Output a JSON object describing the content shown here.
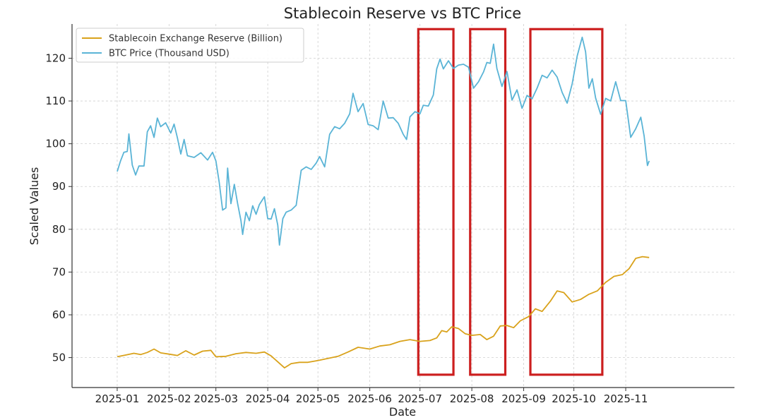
{
  "chart_data": {
    "type": "line",
    "title": "Stablecoin Reserve vs BTC Price",
    "xlabel": "Date",
    "ylabel": "Scaled Values",
    "x_ticks": [
      "2025-01",
      "2025-02",
      "2025-03",
      "2025-04",
      "2025-05",
      "2025-06",
      "2025-07",
      "2025-08",
      "2025-09",
      "2025-10",
      "2025-11"
    ],
    "xlim": [
      "2024-12-05",
      "2026-01-05"
    ],
    "ylim": [
      43,
      128
    ],
    "y_ticks": [
      50,
      60,
      70,
      80,
      90,
      100,
      110,
      120
    ],
    "grid": true,
    "legend_position": "top-left",
    "series": [
      {
        "name": "Stablecoin Exchange Reserve (Billion)",
        "color": "#d9a21b",
        "points": [
          [
            "2025-01-01",
            50.2
          ],
          [
            "2025-01-06",
            50.6
          ],
          [
            "2025-01-11",
            51.0
          ],
          [
            "2025-01-15",
            50.7
          ],
          [
            "2025-01-19",
            51.2
          ],
          [
            "2025-01-23",
            52.0
          ],
          [
            "2025-01-27",
            51.1
          ],
          [
            "2025-02-01",
            50.8
          ],
          [
            "2025-02-06",
            50.5
          ],
          [
            "2025-02-11",
            51.6
          ],
          [
            "2025-02-16",
            50.6
          ],
          [
            "2025-02-21",
            51.5
          ],
          [
            "2025-02-26",
            51.7
          ],
          [
            "2025-03-01",
            50.2
          ],
          [
            "2025-03-07",
            50.3
          ],
          [
            "2025-03-13",
            50.9
          ],
          [
            "2025-03-19",
            51.2
          ],
          [
            "2025-03-25",
            51.0
          ],
          [
            "2025-03-30",
            51.3
          ],
          [
            "2025-04-03",
            50.4
          ],
          [
            "2025-04-07",
            49.0
          ],
          [
            "2025-04-11",
            47.6
          ],
          [
            "2025-04-15",
            48.6
          ],
          [
            "2025-04-20",
            48.9
          ],
          [
            "2025-04-25",
            48.9
          ],
          [
            "2025-05-01",
            49.3
          ],
          [
            "2025-05-07",
            49.8
          ],
          [
            "2025-05-13",
            50.3
          ],
          [
            "2025-05-19",
            51.3
          ],
          [
            "2025-05-25",
            52.4
          ],
          [
            "2025-06-01",
            52.0
          ],
          [
            "2025-06-07",
            52.7
          ],
          [
            "2025-06-13",
            53.0
          ],
          [
            "2025-06-19",
            53.8
          ],
          [
            "2025-06-25",
            54.2
          ],
          [
            "2025-07-01",
            53.8
          ],
          [
            "2025-07-07",
            54.0
          ],
          [
            "2025-07-11",
            54.6
          ],
          [
            "2025-07-14",
            56.3
          ],
          [
            "2025-07-17",
            56.0
          ],
          [
            "2025-07-20",
            57.2
          ],
          [
            "2025-07-24",
            56.8
          ],
          [
            "2025-07-28",
            55.6
          ],
          [
            "2025-08-01",
            55.2
          ],
          [
            "2025-08-06",
            55.4
          ],
          [
            "2025-08-10",
            54.2
          ],
          [
            "2025-08-14",
            55.0
          ],
          [
            "2025-08-18",
            57.4
          ],
          [
            "2025-08-22",
            57.5
          ],
          [
            "2025-08-26",
            57.0
          ],
          [
            "2025-08-30",
            58.6
          ],
          [
            "2025-09-04",
            59.6
          ],
          [
            "2025-09-08",
            61.4
          ],
          [
            "2025-09-12",
            60.8
          ],
          [
            "2025-09-17",
            63.2
          ],
          [
            "2025-09-21",
            65.6
          ],
          [
            "2025-09-25",
            65.2
          ],
          [
            "2025-09-30",
            63.0
          ],
          [
            "2025-10-05",
            63.6
          ],
          [
            "2025-10-10",
            64.8
          ],
          [
            "2025-10-15",
            65.6
          ],
          [
            "2025-10-20",
            67.6
          ],
          [
            "2025-10-25",
            69.0
          ],
          [
            "2025-10-30",
            69.4
          ],
          [
            "2025-11-03",
            70.8
          ],
          [
            "2025-11-07",
            73.2
          ],
          [
            "2025-11-11",
            73.6
          ],
          [
            "2025-11-15",
            73.4
          ]
        ]
      },
      {
        "name": "BTC Price (Thousand USD)",
        "color": "#5ab4d6",
        "points": [
          [
            "2025-01-01",
            93.5
          ],
          [
            "2025-01-03",
            96.0
          ],
          [
            "2025-01-05",
            98.0
          ],
          [
            "2025-01-07",
            98.2
          ],
          [
            "2025-01-08",
            102.3
          ],
          [
            "2025-01-10",
            95.0
          ],
          [
            "2025-01-12",
            92.7
          ],
          [
            "2025-01-14",
            94.8
          ],
          [
            "2025-01-17",
            94.8
          ],
          [
            "2025-01-19",
            102.8
          ],
          [
            "2025-01-21",
            104.2
          ],
          [
            "2025-01-23",
            101.5
          ],
          [
            "2025-01-25",
            106.0
          ],
          [
            "2025-01-27",
            104.0
          ],
          [
            "2025-01-30",
            104.9
          ],
          [
            "2025-02-02",
            102.5
          ],
          [
            "2025-02-04",
            104.6
          ],
          [
            "2025-02-06",
            101.4
          ],
          [
            "2025-02-08",
            97.6
          ],
          [
            "2025-02-10",
            101.0
          ],
          [
            "2025-02-12",
            97.2
          ],
          [
            "2025-02-16",
            96.8
          ],
          [
            "2025-02-20",
            97.9
          ],
          [
            "2025-02-24",
            96.2
          ],
          [
            "2025-02-27",
            98.0
          ],
          [
            "2025-03-01",
            96.0
          ],
          [
            "2025-03-03",
            91.0
          ],
          [
            "2025-03-05",
            84.5
          ],
          [
            "2025-03-07",
            85.0
          ],
          [
            "2025-03-08",
            94.3
          ],
          [
            "2025-03-10",
            86.0
          ],
          [
            "2025-03-12",
            90.5
          ],
          [
            "2025-03-14",
            86.0
          ],
          [
            "2025-03-16",
            82.0
          ],
          [
            "2025-03-17",
            78.8
          ],
          [
            "2025-03-19",
            84.0
          ],
          [
            "2025-03-21",
            82.0
          ],
          [
            "2025-03-23",
            85.5
          ],
          [
            "2025-03-25",
            83.5
          ],
          [
            "2025-03-27",
            85.8
          ],
          [
            "2025-03-30",
            87.6
          ],
          [
            "2025-04-01",
            82.5
          ],
          [
            "2025-04-03",
            82.4
          ],
          [
            "2025-04-05",
            84.8
          ],
          [
            "2025-04-07",
            81.0
          ],
          [
            "2025-04-08",
            76.3
          ],
          [
            "2025-04-10",
            82.5
          ],
          [
            "2025-04-12",
            84.0
          ],
          [
            "2025-04-15",
            84.5
          ],
          [
            "2025-04-18",
            85.6
          ],
          [
            "2025-04-21",
            93.8
          ],
          [
            "2025-04-24",
            94.6
          ],
          [
            "2025-04-27",
            94.0
          ],
          [
            "2025-04-30",
            95.5
          ],
          [
            "2025-05-02",
            97.0
          ],
          [
            "2025-05-05",
            94.6
          ],
          [
            "2025-05-08",
            102.2
          ],
          [
            "2025-05-11",
            104.0
          ],
          [
            "2025-05-14",
            103.5
          ],
          [
            "2025-05-17",
            104.8
          ],
          [
            "2025-05-20",
            107.0
          ],
          [
            "2025-05-22",
            111.8
          ],
          [
            "2025-05-25",
            107.5
          ],
          [
            "2025-05-28",
            109.4
          ],
          [
            "2025-05-31",
            104.5
          ],
          [
            "2025-06-03",
            104.2
          ],
          [
            "2025-06-06",
            103.3
          ],
          [
            "2025-06-09",
            110.0
          ],
          [
            "2025-06-12",
            106.0
          ],
          [
            "2025-06-15",
            106.1
          ],
          [
            "2025-06-18",
            104.8
          ],
          [
            "2025-06-21",
            102.2
          ],
          [
            "2025-06-23",
            101.0
          ],
          [
            "2025-06-25",
            106.3
          ],
          [
            "2025-06-28",
            107.5
          ],
          [
            "2025-07-01",
            107.0
          ],
          [
            "2025-07-03",
            109.0
          ],
          [
            "2025-07-06",
            108.8
          ],
          [
            "2025-07-09",
            111.4
          ],
          [
            "2025-07-11",
            117.5
          ],
          [
            "2025-07-13",
            119.8
          ],
          [
            "2025-07-15",
            117.5
          ],
          [
            "2025-07-18",
            119.4
          ],
          [
            "2025-07-21",
            117.6
          ],
          [
            "2025-07-24",
            118.4
          ],
          [
            "2025-07-27",
            118.6
          ],
          [
            "2025-07-30",
            117.9
          ],
          [
            "2025-08-02",
            113.0
          ],
          [
            "2025-08-05",
            114.5
          ],
          [
            "2025-08-08",
            116.8
          ],
          [
            "2025-08-10",
            119.0
          ],
          [
            "2025-08-12",
            118.8
          ],
          [
            "2025-08-14",
            123.3
          ],
          [
            "2025-08-16",
            117.6
          ],
          [
            "2025-08-19",
            113.4
          ],
          [
            "2025-08-22",
            116.9
          ],
          [
            "2025-08-25",
            110.2
          ],
          [
            "2025-08-28",
            112.6
          ],
          [
            "2025-08-31",
            108.3
          ],
          [
            "2025-09-03",
            111.3
          ],
          [
            "2025-09-06",
            110.5
          ],
          [
            "2025-09-09",
            113.0
          ],
          [
            "2025-09-12",
            116.0
          ],
          [
            "2025-09-15",
            115.4
          ],
          [
            "2025-09-18",
            117.2
          ],
          [
            "2025-09-21",
            115.6
          ],
          [
            "2025-09-24",
            112.0
          ],
          [
            "2025-09-27",
            109.5
          ],
          [
            "2025-09-30",
            114.0
          ],
          [
            "2025-10-03",
            120.5
          ],
          [
            "2025-10-06",
            124.9
          ],
          [
            "2025-10-08",
            121.5
          ],
          [
            "2025-10-10",
            113.0
          ],
          [
            "2025-10-12",
            115.2
          ],
          [
            "2025-10-14",
            110.7
          ],
          [
            "2025-10-17",
            106.9
          ],
          [
            "2025-10-20",
            110.6
          ],
          [
            "2025-10-23",
            110.0
          ],
          [
            "2025-10-26",
            114.5
          ],
          [
            "2025-10-29",
            110.1
          ],
          [
            "2025-11-01",
            110.1
          ],
          [
            "2025-11-04",
            101.5
          ],
          [
            "2025-11-07",
            103.5
          ],
          [
            "2025-11-10",
            106.2
          ],
          [
            "2025-11-12",
            101.8
          ],
          [
            "2025-11-14",
            94.9
          ],
          [
            "2025-11-15",
            96.0
          ]
        ]
      }
    ],
    "highlight_boxes": [
      {
        "x_start": "2025-06-30",
        "x_end": "2025-07-21",
        "y_bottom": 46,
        "y_top": 126.8,
        "color": "#cc1f1f"
      },
      {
        "x_start": "2025-07-31",
        "x_end": "2025-08-21",
        "y_bottom": 46,
        "y_top": 126.8,
        "color": "#cc1f1f"
      },
      {
        "x_start": "2025-09-05",
        "x_end": "2025-10-18",
        "y_bottom": 46,
        "y_top": 126.8,
        "color": "#cc1f1f"
      }
    ]
  }
}
